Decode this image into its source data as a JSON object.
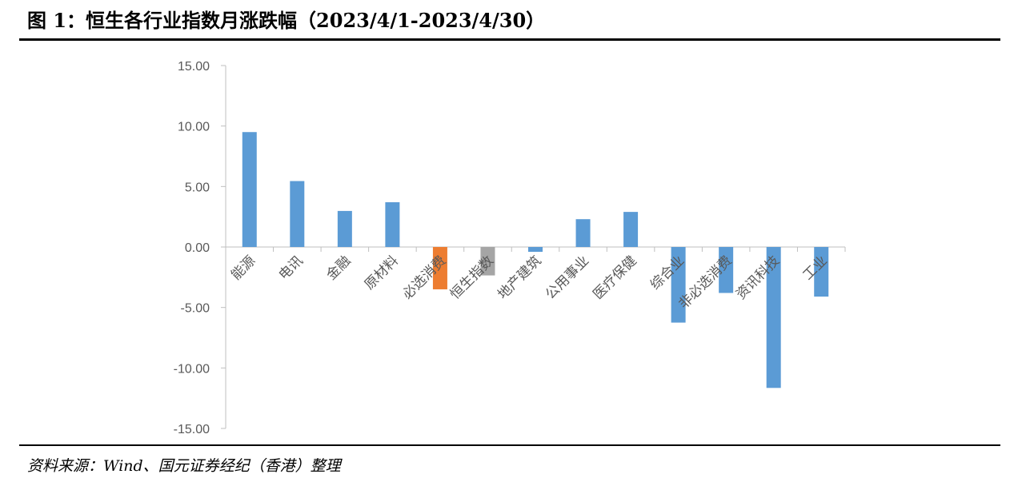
{
  "header": {
    "title": "图 1：恒生各行业指数月涨跌幅（2023/4/1-2023/4/30）"
  },
  "footer": {
    "source": "资料来源：Wind、国元证券经纪（香港）整理"
  },
  "colors": {
    "default_bar": "#5B9BD5",
    "highlight_bar": "#ED7D31",
    "index_bar": "#A5A5A5",
    "axis": "#BFBFBF",
    "text": "#595959"
  },
  "chart_data": {
    "type": "bar",
    "title": "",
    "xlabel": "",
    "ylabel": "",
    "ylim": [
      -15,
      15
    ],
    "yticks": [
      "15.00",
      "10.00",
      "5.00",
      "0.00",
      "-5.00",
      "-10.00",
      "-15.00"
    ],
    "grid": false,
    "legend": "none",
    "categories": [
      "能源",
      "电讯",
      "金融",
      "原材料",
      "必选消费",
      "恒生指数",
      "地产建筑",
      "公用事业",
      "医疗保健",
      "综合业",
      "非必选消费",
      "资讯科技",
      "工业"
    ],
    "values": [
      9.5,
      5.45,
      2.98,
      3.7,
      -3.5,
      -2.35,
      -0.4,
      2.3,
      2.9,
      -6.25,
      -3.8,
      -11.65,
      -4.1
    ],
    "bar_colors": [
      "#5B9BD5",
      "#5B9BD5",
      "#5B9BD5",
      "#5B9BD5",
      "#ED7D31",
      "#A5A5A5",
      "#5B9BD5",
      "#5B9BD5",
      "#5B9BD5",
      "#5B9BD5",
      "#5B9BD5",
      "#5B9BD5",
      "#5B9BD5"
    ]
  }
}
